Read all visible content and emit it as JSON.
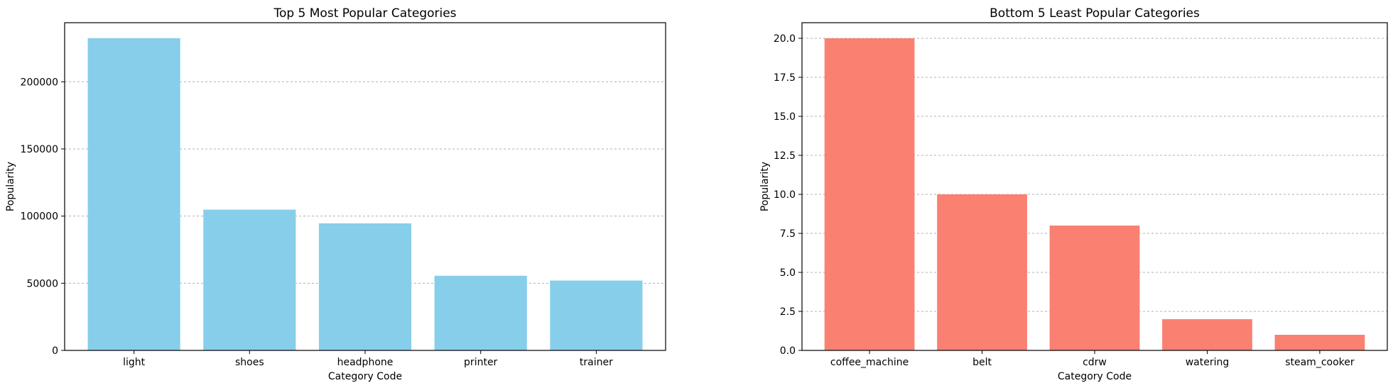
{
  "chart_data": [
    {
      "type": "bar",
      "title": "Top 5 Most Popular Categories",
      "xlabel": "Category Code",
      "ylabel": "Popularity",
      "categories": [
        "light",
        "shoes",
        "headphone",
        "printer",
        "trainer"
      ],
      "values": [
        232500,
        104800,
        94600,
        55600,
        52000
      ],
      "ylim": [
        0,
        244000
      ],
      "yticks": [
        0,
        50000,
        100000,
        150000,
        200000
      ],
      "ytick_labels": [
        "0",
        "50000",
        "100000",
        "150000",
        "200000"
      ],
      "color": "#87ceeb",
      "grid": "y"
    },
    {
      "type": "bar",
      "title": "Bottom 5 Least Popular Categories",
      "xlabel": "Category Code",
      "ylabel": "Popularity",
      "categories": [
        "coffee_machine",
        "belt",
        "cdrw",
        "watering",
        "steam_cooker"
      ],
      "values": [
        20,
        10,
        8,
        2,
        1
      ],
      "ylim": [
        0,
        21
      ],
      "yticks": [
        0,
        2.5,
        5,
        7.5,
        10,
        12.5,
        15,
        17.5,
        20
      ],
      "ytick_labels": [
        "0.0",
        "2.5",
        "5.0",
        "7.5",
        "10.0",
        "12.5",
        "15.0",
        "17.5",
        "20.0"
      ],
      "color": "#fa8072",
      "grid": "y"
    }
  ]
}
